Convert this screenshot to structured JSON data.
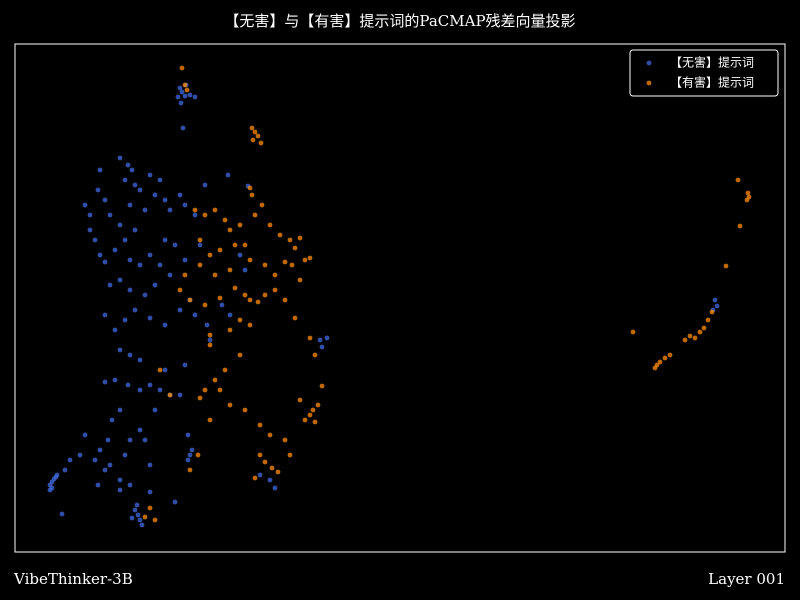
{
  "chart_data": {
    "type": "scatter",
    "title": "【无害】与【有害】提示词的PaCMAP残差向量投影",
    "footer_left": "VibeThinker-3B",
    "footer_right": "Layer 001",
    "xlim": [
      0,
      770
    ],
    "ylim": [
      0,
      508
    ],
    "legend": "upper right",
    "series": [
      {
        "name": "【无害】提示词",
        "color": "#4169e1",
        "x": [
          165,
          167,
          170,
          163,
          175,
          180,
          168,
          171,
          166,
          105,
          113,
          117,
          110,
          120,
          125,
          85,
          83,
          70,
          75,
          90,
          95,
          135,
          145,
          140,
          130,
          150,
          155,
          165,
          170,
          180,
          190,
          80,
          85,
          90,
          100,
          110,
          120,
          115,
          125,
          135,
          145,
          155,
          140,
          130,
          115,
          105,
          95,
          110,
          90,
          100,
          120,
          135,
          150,
          165,
          175,
          180,
          170,
          185,
          75,
          105,
          115,
          150,
          160,
          225,
          230,
          213,
          233,
          105,
          115,
          125,
          90,
          100,
          113,
          125,
          135,
          145,
          155,
          165,
          170,
          150,
          105,
          97,
          93,
          85,
          80,
          95,
          110,
          115,
          125,
          130,
          135,
          105,
          90,
          70,
          55,
          50,
          65,
          83,
          115,
          105,
          47,
          160,
          140,
          35,
          37,
          39,
          41,
          37,
          35,
          42,
          120,
          123,
          125,
          127,
          122,
          117,
          135,
          175,
          173,
          177,
          173,
          255,
          260,
          245,
          305,
          312,
          307,
          700,
          702,
          698,
          207,
          215,
          192,
          195
        ],
        "values": [
          464,
          460,
          456,
          455,
          457,
          455,
          424,
          467,
          449,
          394,
          387,
          382,
          372,
          367,
          362,
          382,
          362,
          347,
          337,
          352,
          337,
          377,
          372,
          357,
          342,
          352,
          342,
          357,
          347,
          337,
          367,
          312,
          297,
          290,
          302,
          312,
          322,
          292,
          287,
          297,
          287,
          277,
          267,
          257,
          262,
          272,
          267,
          232,
          237,
          222,
          242,
          234,
          227,
          242,
          252,
          237,
          292,
          307,
          322,
          327,
          347,
          312,
          307,
          297,
          282,
          377,
          366,
          202,
          197,
          192,
          170,
          172,
          167,
          162,
          167,
          162,
          157,
          157,
          187,
          182,
          142,
          132,
          112,
          102,
          92,
          87,
          97,
          112,
          122,
          112,
          87,
          72,
          82,
          117,
          92,
          82,
          97,
          67,
          67,
          62,
          38,
          50,
          142,
          67,
          70,
          73,
          75,
          64,
          62,
          77,
          42,
          37,
          32,
          27,
          47,
          34,
          60,
          97,
          92,
          102,
          117,
          72,
          64,
          77,
          212,
          214,
          205,
          252,
          246,
          242,
          247,
          237,
          227,
          212
        ]
      },
      {
        "name": "【有害】提示词",
        "color": "#ff8c00",
        "x": [
          167,
          170,
          172,
          237,
          240,
          243,
          238,
          246,
          235,
          237,
          723,
          733,
          734,
          732,
          725,
          711,
          697,
          693,
          689,
          685,
          680,
          675,
          670,
          655,
          650,
          645,
          642,
          640,
          618,
          180,
          190,
          200,
          210,
          215,
          225,
          240,
          247,
          255,
          265,
          275,
          280,
          285,
          270,
          277,
          290,
          295,
          185,
          195,
          205,
          220,
          230,
          235,
          250,
          260,
          215,
          200,
          185,
          170,
          165,
          175,
          190,
          205,
          220,
          230,
          235,
          243,
          250,
          260,
          270,
          280,
          225,
          215,
          195,
          235,
          195,
          225,
          210,
          200,
          205,
          190,
          215,
          230,
          245,
          255,
          270,
          245,
          250,
          257,
          263,
          240,
          275,
          295,
          300,
          185,
          195,
          175,
          183,
          295,
          300,
          298,
          303,
          290,
          307,
          285,
          285,
          130,
          135,
          140,
          155,
          145
        ],
        "values": [
          484,
          467,
          462,
          424,
          420,
          416,
          412,
          409,
          364,
          357,
          372,
          359,
          355,
          352,
          326,
          286,
          240,
          232,
          224,
          220,
          214,
          216,
          212,
          197,
          194,
          190,
          187,
          184,
          220,
          342,
          337,
          342,
          332,
          322,
          327,
          337,
          347,
          327,
          317,
          312,
          304,
          314,
          290,
          287,
          292,
          294,
          312,
          297,
          302,
          307,
          307,
          292,
          287,
          277,
          282,
          277,
          287,
          277,
          262,
          252,
          247,
          254,
          264,
          257,
          252,
          250,
          257,
          262,
          252,
          234,
          232,
          222,
          217,
          227,
          207,
          197,
          182,
          172,
          162,
          162,
          147,
          142,
          127,
          117,
          112,
          97,
          90,
          84,
          80,
          74,
          97,
          214,
          197,
          154,
          132,
          82,
          97,
          137,
          130,
          142,
          147,
          132,
          166,
          152,
          272,
          35,
          44,
          32,
          157,
          182
        ]
      }
    ]
  }
}
